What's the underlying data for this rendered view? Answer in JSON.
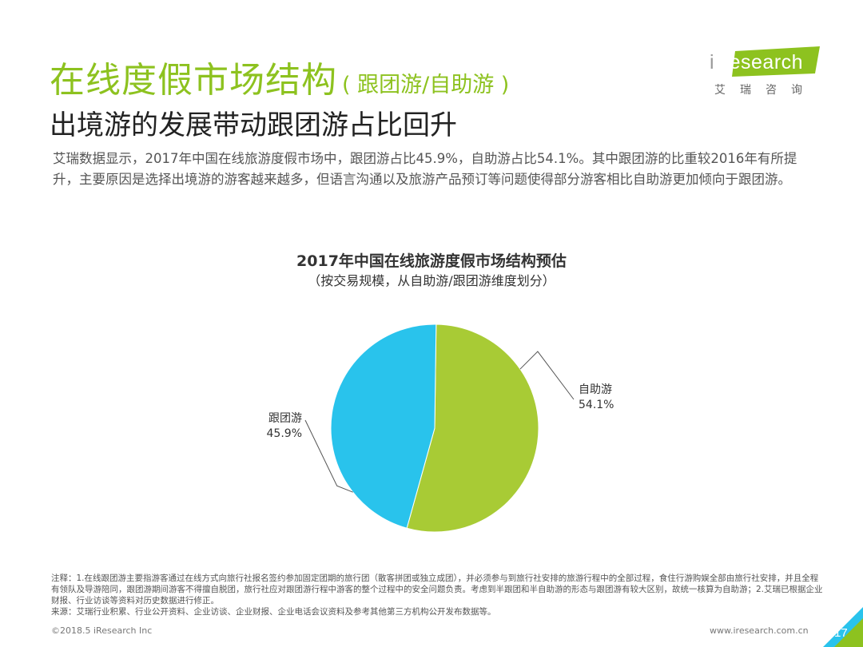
{
  "header": {
    "title": "在线度假市场结构",
    "title_paren": "( 跟团游/自助游 )",
    "subtitle": "出境游的发展带动跟团游占比回升",
    "body": "艾瑞数据显示，2017年中国在线旅游度假市场中，跟团游占比45.9%，自助游占比54.1%。其中跟团游的比重较2016年有所提升，主要原因是选择出境游的游客越来越多，但语言沟通以及旅游产品预订等问题使得部分游客相比自助游更加倾向于跟团游。"
  },
  "logo": {
    "mark": "i",
    "text": "Research",
    "cn": "艾瑞咨询"
  },
  "chart_data": {
    "type": "pie",
    "title": "2017年中国在线旅游度假市场结构预估",
    "subtitle": "（按交易规模，从自助游/跟团游维度划分）",
    "slices": [
      {
        "name": "自助游",
        "value": 54.1,
        "label": "54.1%",
        "color": "#a8cb35"
      },
      {
        "name": "跟团游",
        "value": 45.9,
        "label": "45.9%",
        "color": "#29c3ec"
      }
    ]
  },
  "notes": {
    "note": "注释：1.在线跟团游主要指游客通过在线方式向旅行社报名签约参加固定团期的旅行团（散客拼团或独立成团），并必须参与到旅行社安排的旅游行程中的全部过程，食住行游购娱全部由旅行社安排，并且全程有领队及导游陪同，跟团游期间游客不得擅自脱团，旅行社应对跟团游行程中游客的整个过程中的安全问题负责。考虑到半跟团和半自助游的形态与跟团游有较大区别，故统一核算为自助游；2.艾瑞已根据企业财报、行业访谈等资料对历史数据进行修正。",
    "source": "来源：艾瑞行业积累、行业公开资料、企业访谈、企业财报、企业电话会议资料及参考其他第三方机构公开发布数据等。"
  },
  "footer": {
    "copyright": "©2018.5 iResearch Inc",
    "website": "www.iresearch.com.cn",
    "page": "17"
  }
}
